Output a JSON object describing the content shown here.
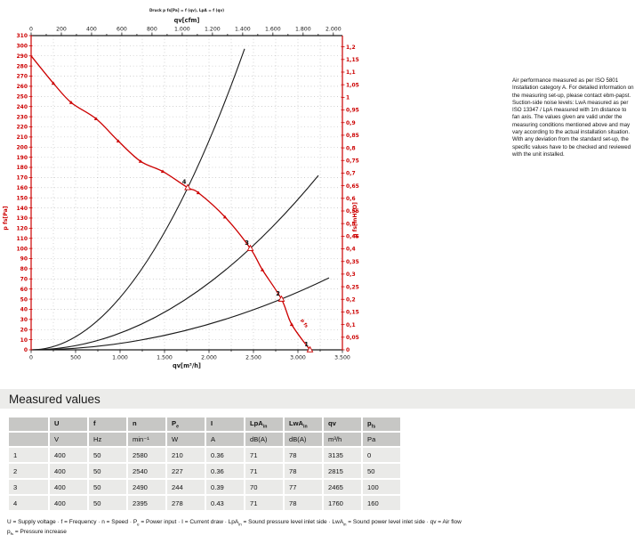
{
  "chart_data": {
    "type": "line",
    "title": "Druck p fs[Pa] = f (qv), LpA = f (qv)",
    "axes": {
      "bottom": {
        "label": "qv[m³/h]",
        "min": 0,
        "max": 3500,
        "tick_step": 500,
        "minor_step": 250,
        "color": "#1a1a1a"
      },
      "top": {
        "label": "qv[cfm]",
        "min": 0,
        "max": 2000,
        "tick_step": 200,
        "minor_step": 100,
        "m3h_per_cfm": 1.699,
        "color": "#1a1a1a"
      },
      "left": {
        "label": "p fs[Pa]",
        "min": 0,
        "max": 310,
        "tick_step": 10,
        "color": "#cc0000"
      },
      "right": {
        "label": "p fs[inH2O]",
        "min": 0,
        "max": 1.2,
        "tick_step": 0.05,
        "pa_per_inh2o": 249.089,
        "color": "#cc0000"
      }
    },
    "grid": {
      "h_step_pa": 10,
      "v_step_m3h": 250,
      "color": "#aaaaaa",
      "on": true
    },
    "series": [
      {
        "name": "pressure-curve",
        "color": "#cc0000",
        "label": "p fs",
        "points": [
          [
            0,
            290
          ],
          [
            250,
            263
          ],
          [
            450,
            244
          ],
          [
            730,
            228
          ],
          [
            980,
            206
          ],
          [
            1230,
            186
          ],
          [
            1480,
            176
          ],
          [
            1760,
            160
          ],
          [
            1880,
            155
          ],
          [
            2180,
            131
          ],
          [
            2465,
            100
          ],
          [
            2600,
            79
          ],
          [
            2815,
            50
          ],
          [
            2930,
            25
          ],
          [
            3135,
            0
          ]
        ],
        "marker_points": [
          [
            250,
            263
          ],
          [
            450,
            244
          ],
          [
            730,
            228
          ],
          [
            980,
            206
          ],
          [
            1230,
            186
          ],
          [
            1480,
            176
          ],
          [
            1880,
            155
          ],
          [
            2180,
            131
          ],
          [
            2600,
            79
          ],
          [
            2930,
            25
          ]
        ]
      }
    ],
    "operating_points": [
      {
        "n": "4",
        "qv": 1760,
        "p": 160
      },
      {
        "n": "3",
        "qv": 2465,
        "p": 100
      },
      {
        "n": "2",
        "qv": 2815,
        "p": 50
      },
      {
        "n": "1",
        "qv": 3135,
        "p": 0
      }
    ],
    "system_curves": [
      {
        "name": "parabola-through-point-4",
        "color": "#1a1a1a",
        "end_qv": 2400,
        "end_p": 297
      },
      {
        "name": "parabola-through-point-3",
        "color": "#1a1a1a",
        "end_qv": 3230,
        "end_p": 172
      },
      {
        "name": "parabola-through-point-2",
        "color": "#1a1a1a",
        "end_qv": 3350,
        "end_p": 71
      }
    ],
    "legend_position": "none"
  },
  "note": {
    "text": "Air performance measured as per ISO 5801 Installation category A. For detailed information on the measuring set-up, please contact ebm-papst. Suction-side noise levels: LwA measured as per ISO 13347 / LpA measured with 1m distance to fan axis. The values given are valid under the measuring conditions mentioned above and may vary according to the actual installation situation. With any deviation from the standard set-up, the specific values have to be checked and reviewed with the unit installed."
  },
  "measured": {
    "title": "Measured values",
    "headers": [
      {
        "base": "",
        "sub": ""
      },
      {
        "base": "U",
        "sub": ""
      },
      {
        "base": "f",
        "sub": ""
      },
      {
        "base": "n",
        "sub": ""
      },
      {
        "base": "P",
        "sub": "e"
      },
      {
        "base": "I",
        "sub": ""
      },
      {
        "base": "LpA",
        "sub": "in"
      },
      {
        "base": "LwA",
        "sub": "in"
      },
      {
        "base": "qv",
        "sub": ""
      },
      {
        "base": "p",
        "sub": "fs"
      }
    ],
    "units": [
      "",
      "V",
      "Hz",
      "min⁻¹",
      "W",
      "A",
      "dB(A)",
      "dB(A)",
      "m³/h",
      "Pa"
    ],
    "rows": [
      [
        "1",
        "400",
        "50",
        "2580",
        "210",
        "0.36",
        "71",
        "78",
        "3135",
        "0"
      ],
      [
        "2",
        "400",
        "50",
        "2540",
        "227",
        "0.36",
        "71",
        "78",
        "2815",
        "50"
      ],
      [
        "3",
        "400",
        "50",
        "2490",
        "244",
        "0.39",
        "70",
        "77",
        "2465",
        "100"
      ],
      [
        "4",
        "400",
        "50",
        "2395",
        "278",
        "0.43",
        "71",
        "78",
        "1760",
        "160"
      ]
    ],
    "footnote1": [
      {
        "t": "U = Supply voltage · f = Frequency · n = Speed · P"
      },
      {
        "sub": "e"
      },
      {
        "t": " = Power input · I = Current draw · LpA"
      },
      {
        "sub": "in"
      },
      {
        "t": " = Sound pressure level inlet side · LwA"
      },
      {
        "sub": "in"
      },
      {
        "t": " = Sound power level inlet side · qv = Air flow"
      }
    ],
    "footnote2": [
      {
        "t": "p"
      },
      {
        "sub": "fs"
      },
      {
        "t": " = Pressure increase"
      }
    ]
  }
}
